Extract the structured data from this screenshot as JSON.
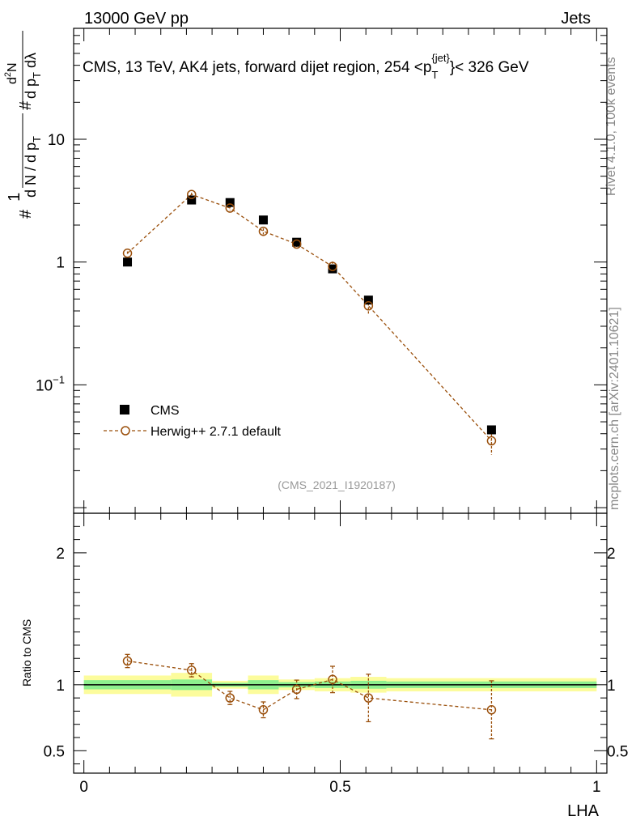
{
  "header": {
    "energy_label": "13000 GeV pp",
    "category_label": "Jets"
  },
  "side_text": {
    "rivet": "Rivet 4.1.0,  100k events",
    "source": "mcplots.cern.ch [arXiv:2401.10621]"
  },
  "chart_data": [
    {
      "type": "scatter",
      "panel": "main",
      "title": "CMS, 13 TeV, AK4 jets, forward dijet region, 254 <p_T^{jet}< 326 GeV",
      "title_parts": {
        "prefix": "CMS, 13 TeV, AK4 jets, forward dijet region, 254 <p",
        "sub": "T",
        "sup": "{jet}",
        "suffix": "}< 326 GeV"
      },
      "watermark": "(CMS_2021_I1920187)",
      "ylabel": "1/(dN/dp_T) d²N/(dp_T dλ)",
      "xlabel": "LHA",
      "yscale": "log",
      "xlim": [
        -0.02,
        1.02
      ],
      "ylim": [
        0.009,
        80
      ],
      "yticks": [
        {
          "value": 0.1,
          "base": "10",
          "exp": "−1"
        },
        {
          "value": 1,
          "base": "1",
          "exp": ""
        },
        {
          "value": 10,
          "base": "10",
          "exp": ""
        }
      ],
      "legend": [
        {
          "label": "CMS",
          "style": "black-square"
        },
        {
          "label": "Herwig++ 2.7.1 default",
          "style": "brown-dashed-open-circle"
        }
      ],
      "series": [
        {
          "name": "CMS",
          "x": [
            0.085,
            0.21,
            0.285,
            0.35,
            0.415,
            0.485,
            0.555,
            0.795
          ],
          "y": [
            1.0,
            3.2,
            3.05,
            2.2,
            1.45,
            0.88,
            0.49,
            0.043
          ],
          "yerr": [
            0.04,
            0.1,
            0.09,
            0.07,
            0.05,
            0.04,
            0.025,
            0.003
          ],
          "color": "#000000"
        },
        {
          "name": "Herwig++ 2.7.1 default",
          "x": [
            0.085,
            0.21,
            0.285,
            0.35,
            0.415,
            0.485,
            0.555,
            0.795
          ],
          "y": [
            1.18,
            3.55,
            2.75,
            1.78,
            1.4,
            0.92,
            0.44,
            0.035
          ],
          "yerr": [
            0.04,
            0.12,
            0.12,
            0.1,
            0.1,
            0.09,
            0.06,
            0.008
          ],
          "color": "#9a4f0b"
        }
      ]
    },
    {
      "type": "scatter",
      "panel": "ratio",
      "ylabel": "Ratio to CMS",
      "xlabel": "LHA",
      "xlim": [
        -0.02,
        1.02
      ],
      "ylim": [
        0.33,
        2.3
      ],
      "yticks": [
        0.5,
        1,
        2
      ],
      "xticks": [
        0,
        0.5,
        1
      ],
      "xtick_labels": [
        "0",
        "0.5",
        "1"
      ],
      "bands": [
        {
          "x0": 0.0,
          "x1": 0.17,
          "green": [
            0.965,
            1.035
          ],
          "yellow": [
            0.93,
            1.07
          ]
        },
        {
          "x0": 0.17,
          "x1": 0.25,
          "green": [
            0.96,
            1.04
          ],
          "yellow": [
            0.91,
            1.09
          ]
        },
        {
          "x0": 0.25,
          "x1": 0.32,
          "green": [
            0.985,
            1.015
          ],
          "yellow": [
            0.97,
            1.03
          ]
        },
        {
          "x0": 0.32,
          "x1": 0.38,
          "green": [
            0.965,
            1.035
          ],
          "yellow": [
            0.93,
            1.07
          ]
        },
        {
          "x0": 0.38,
          "x1": 0.45,
          "green": [
            0.98,
            1.02
          ],
          "yellow": [
            0.96,
            1.04
          ]
        },
        {
          "x0": 0.45,
          "x1": 0.52,
          "green": [
            0.975,
            1.025
          ],
          "yellow": [
            0.95,
            1.05
          ]
        },
        {
          "x0": 0.52,
          "x1": 0.59,
          "green": [
            0.97,
            1.03
          ],
          "yellow": [
            0.94,
            1.06
          ]
        },
        {
          "x0": 0.59,
          "x1": 1.0,
          "green": [
            0.975,
            1.025
          ],
          "yellow": [
            0.95,
            1.05
          ]
        }
      ],
      "series": [
        {
          "name": "Herwig++ 2.7.1 default / CMS",
          "x": [
            0.085,
            0.21,
            0.285,
            0.35,
            0.415,
            0.485,
            0.555,
            0.795
          ],
          "y": [
            1.18,
            1.11,
            0.9,
            0.81,
            0.965,
            1.04,
            0.9,
            0.81
          ],
          "yerr": [
            0.05,
            0.05,
            0.05,
            0.06,
            0.07,
            0.1,
            0.18,
            0.22
          ],
          "color": "#9a4f0b"
        }
      ],
      "colors": {
        "green": "#8ef08e",
        "yellow": "#fcfc9c",
        "line": "#000000"
      }
    }
  ]
}
